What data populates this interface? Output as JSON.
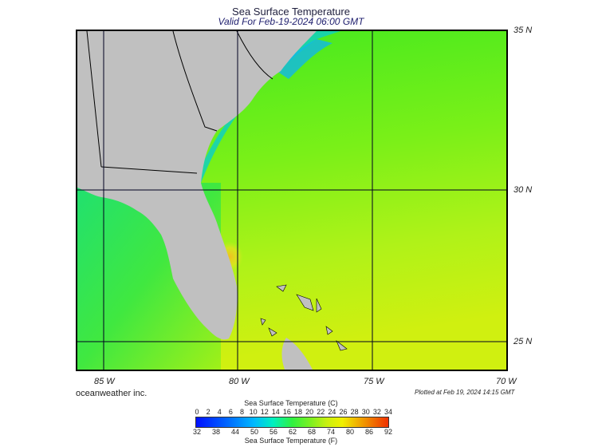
{
  "header": {
    "title": "Sea Surface Temperature",
    "subtitle": "Valid For Feb-19-2024 06:00 GMT"
  },
  "map": {
    "lat_labels": [
      "35 N",
      "30 N",
      "25 N"
    ],
    "lon_labels": [
      "85 W",
      "80 W",
      "75 W",
      "70 W"
    ],
    "land_color": "#c0c0c0",
    "ocean_warm_color": "#b8f21c",
    "ocean_mid_color": "#5ef01a",
    "ocean_cool_color": "#1ee8a0",
    "gulfstream_color": "#f0d020"
  },
  "footer": {
    "credit": "oceanweather inc.",
    "plotted": "Plotted at Feb 19, 2024 14:15 GMT"
  },
  "legend": {
    "title_c": "Sea Surface Temperature (C)",
    "title_f": "Sea Surface Temperature (F)",
    "ticks_c": [
      "0",
      "2",
      "4",
      "6",
      "8",
      "10",
      "12",
      "14",
      "16",
      "18",
      "20",
      "22",
      "24",
      "26",
      "28",
      "30",
      "32",
      "34"
    ],
    "ticks_f": [
      "32",
      "38",
      "44",
      "50",
      "56",
      "62",
      "68",
      "74",
      "80",
      "86",
      "92"
    ]
  }
}
